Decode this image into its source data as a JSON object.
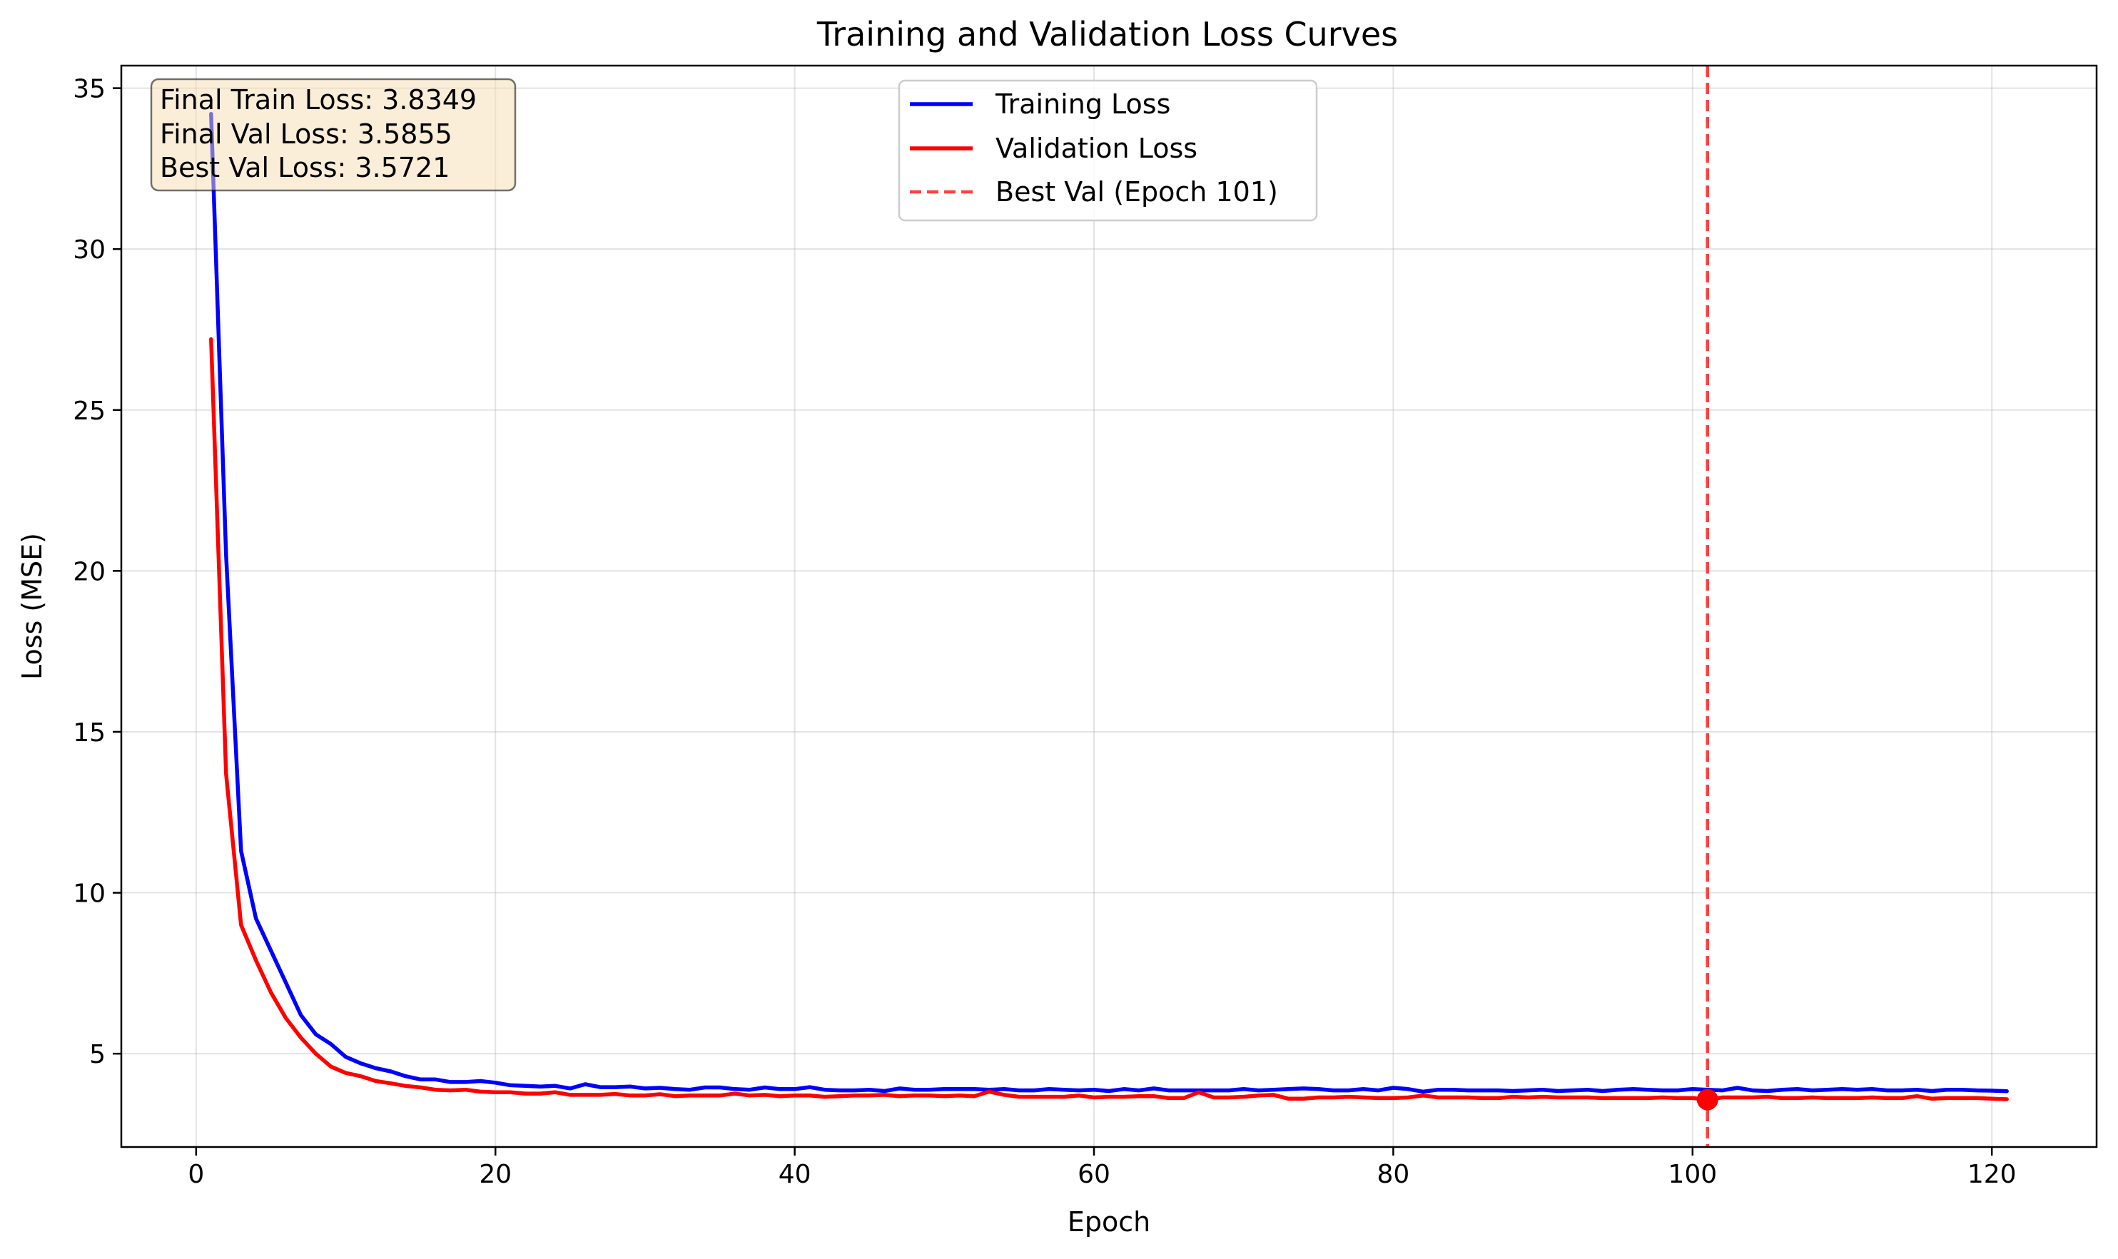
{
  "chart_data": {
    "type": "line",
    "title": "Training and Validation Loss Curves",
    "xlabel": "Epoch",
    "ylabel": "Loss (MSE)",
    "xlim": [
      -5,
      127
    ],
    "ylim": [
      2.1,
      35.7
    ],
    "xticks": [
      0,
      20,
      40,
      60,
      80,
      100,
      120
    ],
    "yticks": [
      5,
      10,
      15,
      20,
      25,
      30,
      35
    ],
    "grid": true,
    "legend_position": "top-center",
    "series": [
      {
        "name": "Training Loss",
        "color": "#0000ff",
        "x": [
          1,
          2,
          3,
          4,
          5,
          6,
          7,
          8,
          9,
          10,
          11,
          12,
          13,
          14,
          15,
          16,
          17,
          18,
          19,
          20,
          21,
          22,
          23,
          24,
          25,
          26,
          27,
          28,
          29,
          30,
          31,
          32,
          33,
          34,
          35,
          36,
          37,
          38,
          39,
          40,
          41,
          42,
          43,
          44,
          45,
          46,
          47,
          48,
          49,
          50,
          51,
          52,
          53,
          54,
          55,
          56,
          57,
          58,
          59,
          60,
          61,
          62,
          63,
          64,
          65,
          66,
          67,
          68,
          69,
          70,
          71,
          72,
          73,
          74,
          75,
          76,
          77,
          78,
          79,
          80,
          81,
          82,
          83,
          84,
          85,
          86,
          87,
          88,
          89,
          90,
          91,
          92,
          93,
          94,
          95,
          96,
          97,
          98,
          99,
          100,
          101,
          102,
          103,
          104,
          105,
          106,
          107,
          108,
          109,
          110,
          111,
          112,
          113,
          114,
          115,
          116,
          117,
          118,
          119,
          120,
          121
        ],
        "values": [
          34.2,
          20.5,
          11.3,
          9.2,
          8.2,
          7.2,
          6.2,
          5.6,
          5.3,
          4.9,
          4.7,
          4.55,
          4.45,
          4.3,
          4.2,
          4.2,
          4.12,
          4.12,
          4.15,
          4.1,
          4.02,
          4.0,
          3.98,
          4.0,
          3.92,
          4.05,
          3.96,
          3.96,
          3.98,
          3.92,
          3.94,
          3.9,
          3.88,
          3.95,
          3.95,
          3.9,
          3.88,
          3.95,
          3.9,
          3.9,
          3.96,
          3.88,
          3.86,
          3.86,
          3.88,
          3.84,
          3.92,
          3.88,
          3.88,
          3.9,
          3.9,
          3.9,
          3.88,
          3.9,
          3.86,
          3.86,
          3.9,
          3.88,
          3.86,
          3.88,
          3.84,
          3.9,
          3.86,
          3.92,
          3.86,
          3.86,
          3.86,
          3.86,
          3.86,
          3.9,
          3.86,
          3.88,
          3.9,
          3.92,
          3.9,
          3.86,
          3.86,
          3.9,
          3.86,
          3.94,
          3.9,
          3.82,
          3.88,
          3.88,
          3.86,
          3.86,
          3.86,
          3.84,
          3.86,
          3.88,
          3.84,
          3.86,
          3.88,
          3.84,
          3.88,
          3.9,
          3.88,
          3.86,
          3.86,
          3.9,
          3.88,
          3.86,
          3.94,
          3.86,
          3.84,
          3.88,
          3.9,
          3.86,
          3.88,
          3.9,
          3.88,
          3.9,
          3.86,
          3.86,
          3.88,
          3.84,
          3.88,
          3.88,
          3.86,
          3.85,
          3.8349
        ]
      },
      {
        "name": "Validation Loss",
        "color": "#ff0000",
        "x": [
          1,
          2,
          3,
          4,
          5,
          6,
          7,
          8,
          9,
          10,
          11,
          12,
          13,
          14,
          15,
          16,
          17,
          18,
          19,
          20,
          21,
          22,
          23,
          24,
          25,
          26,
          27,
          28,
          29,
          30,
          31,
          32,
          33,
          34,
          35,
          36,
          37,
          38,
          39,
          40,
          41,
          42,
          43,
          44,
          45,
          46,
          47,
          48,
          49,
          50,
          51,
          52,
          53,
          54,
          55,
          56,
          57,
          58,
          59,
          60,
          61,
          62,
          63,
          64,
          65,
          66,
          67,
          68,
          69,
          70,
          71,
          72,
          73,
          74,
          75,
          76,
          77,
          78,
          79,
          80,
          81,
          82,
          83,
          84,
          85,
          86,
          87,
          88,
          89,
          90,
          91,
          92,
          93,
          94,
          95,
          96,
          97,
          98,
          99,
          100,
          101,
          102,
          103,
          104,
          105,
          106,
          107,
          108,
          109,
          110,
          111,
          112,
          113,
          114,
          115,
          116,
          117,
          118,
          119,
          120,
          121
        ],
        "values": [
          27.2,
          13.7,
          9.0,
          7.9,
          6.9,
          6.1,
          5.5,
          5.0,
          4.6,
          4.4,
          4.3,
          4.15,
          4.08,
          4.0,
          3.95,
          3.88,
          3.86,
          3.88,
          3.82,
          3.8,
          3.8,
          3.76,
          3.76,
          3.8,
          3.72,
          3.72,
          3.72,
          3.75,
          3.7,
          3.7,
          3.74,
          3.68,
          3.7,
          3.7,
          3.7,
          3.76,
          3.7,
          3.72,
          3.68,
          3.7,
          3.7,
          3.66,
          3.68,
          3.7,
          3.7,
          3.72,
          3.68,
          3.7,
          3.7,
          3.68,
          3.7,
          3.68,
          3.82,
          3.72,
          3.66,
          3.66,
          3.66,
          3.66,
          3.7,
          3.64,
          3.66,
          3.66,
          3.68,
          3.68,
          3.62,
          3.62,
          3.8,
          3.64,
          3.64,
          3.66,
          3.7,
          3.72,
          3.6,
          3.6,
          3.64,
          3.64,
          3.66,
          3.64,
          3.62,
          3.62,
          3.64,
          3.7,
          3.64,
          3.64,
          3.64,
          3.62,
          3.62,
          3.66,
          3.64,
          3.66,
          3.64,
          3.64,
          3.64,
          3.62,
          3.62,
          3.62,
          3.62,
          3.64,
          3.62,
          3.62,
          3.5721,
          3.64,
          3.64,
          3.64,
          3.66,
          3.62,
          3.62,
          3.64,
          3.62,
          3.62,
          3.62,
          3.64,
          3.62,
          3.62,
          3.68,
          3.6,
          3.62,
          3.62,
          3.62,
          3.6,
          3.5855
        ]
      }
    ],
    "best_val": {
      "label": "Best Val (Epoch 101)",
      "epoch": 101,
      "value": 3.5721,
      "color": "#ff4040"
    },
    "stats_box": [
      "Final Train Loss: 3.8349",
      "Final Val Loss: 3.5855",
      "Best Val Loss: 3.5721"
    ]
  }
}
